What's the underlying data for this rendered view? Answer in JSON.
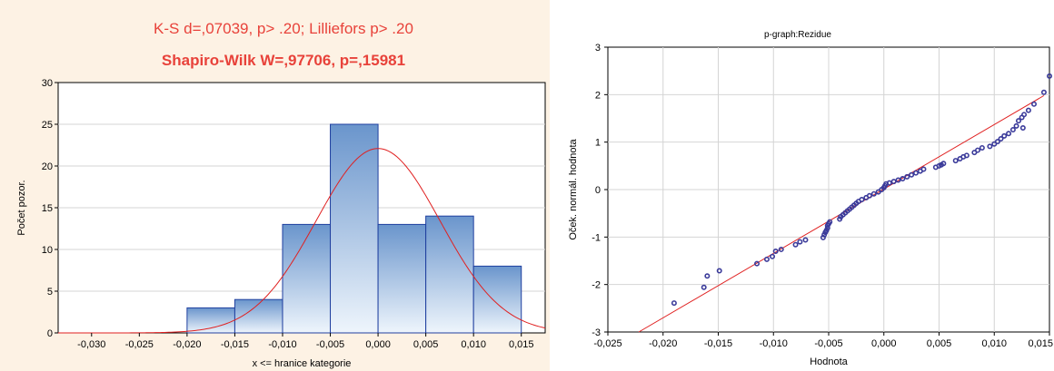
{
  "colors": {
    "left_background": "#fdf2e4",
    "title_color": "#e8423a",
    "bar_top": "#6a95cc",
    "bar_bottom": "#eef5fc",
    "bar_border": "#1f3f9f",
    "curve": "#e02020",
    "points": "#3b3b9a"
  },
  "chart_data": [
    {
      "type": "bar",
      "title": "K-S d=,07039, p> .20; Lilliefors p> .20",
      "subtitle": "Shapiro-Wilk W=,97706, p=,15981",
      "xlabel": "x <= hranice kategorie",
      "ylabel": "Počet pozor.",
      "xlim": [
        -0.0335,
        0.0175
      ],
      "ylim": [
        0,
        30
      ],
      "x_ticks": [
        "-0,030",
        "-0,025",
        "-0,020",
        "-0,015",
        "-0,010",
        "-0,005",
        "0,000",
        "0,005",
        "0,010",
        "0,015"
      ],
      "x_tick_values": [
        -0.03,
        -0.025,
        -0.02,
        -0.015,
        -0.01,
        -0.005,
        0.0,
        0.005,
        0.01,
        0.015
      ],
      "y_ticks": [
        "0",
        "5",
        "10",
        "15",
        "20",
        "25",
        "30"
      ],
      "y_tick_values": [
        0,
        5,
        10,
        15,
        20,
        25,
        30
      ],
      "bins": [
        {
          "from": -0.02,
          "to": -0.015,
          "count": 3
        },
        {
          "from": -0.015,
          "to": -0.01,
          "count": 4
        },
        {
          "from": -0.01,
          "to": -0.005,
          "count": 13
        },
        {
          "from": -0.005,
          "to": 0.0,
          "count": 25
        },
        {
          "from": 0.0,
          "to": 0.005,
          "count": 13
        },
        {
          "from": 0.005,
          "to": 0.01,
          "count": 14
        },
        {
          "from": 0.01,
          "to": 0.015,
          "count": 8
        }
      ],
      "normal_curve": {
        "mean": 0.0,
        "sd": 0.0065,
        "peak": 22.1
      },
      "grid": true
    },
    {
      "type": "scatter",
      "title": "p-graph:Rezidue",
      "xlabel": "Hodnota",
      "ylabel": "Oček. normál. hodnota",
      "xlim": [
        -0.025,
        0.015
      ],
      "ylim": [
        -3,
        3
      ],
      "x_ticks": [
        "-0,025",
        "-0,020",
        "-0,015",
        "-0,010",
        "-0,005",
        "0,000",
        "0,005",
        "0,010",
        "0,015"
      ],
      "x_tick_values": [
        -0.025,
        -0.02,
        -0.015,
        -0.01,
        -0.005,
        0.0,
        0.005,
        0.01,
        0.015
      ],
      "y_ticks": [
        "-3",
        "-2",
        "-1",
        "0",
        "1",
        "2",
        "3"
      ],
      "y_tick_values": [
        -3,
        -2,
        -1,
        0,
        1,
        2,
        3
      ],
      "fit_line": {
        "x": [
          -0.0222,
          0.0145
        ],
        "y": [
          -3.0,
          1.98
        ]
      },
      "points": [
        [
          -0.019,
          -2.39
        ],
        [
          -0.0163,
          -2.06
        ],
        [
          -0.016,
          -1.82
        ],
        [
          -0.0149,
          -1.71
        ],
        [
          -0.0115,
          -1.56
        ],
        [
          -0.0106,
          -1.47
        ],
        [
          -0.0101,
          -1.41
        ],
        [
          -0.0098,
          -1.3
        ],
        [
          -0.0093,
          -1.26
        ],
        [
          -0.008,
          -1.16
        ],
        [
          -0.0076,
          -1.1
        ],
        [
          -0.0071,
          -1.06
        ],
        [
          -0.0055,
          -1.01
        ],
        [
          -0.0054,
          -0.95
        ],
        [
          -0.0053,
          -0.9
        ],
        [
          -0.0052,
          -0.86
        ],
        [
          -0.0051,
          -0.81
        ],
        [
          -0.0051,
          -0.76
        ],
        [
          -0.005,
          -0.72
        ],
        [
          -0.0049,
          -0.68
        ],
        [
          -0.004,
          -0.62
        ],
        [
          -0.0039,
          -0.57
        ],
        [
          -0.0037,
          -0.53
        ],
        [
          -0.0035,
          -0.49
        ],
        [
          -0.0033,
          -0.45
        ],
        [
          -0.0031,
          -0.41
        ],
        [
          -0.0029,
          -0.37
        ],
        [
          -0.0027,
          -0.33
        ],
        [
          -0.0025,
          -0.29
        ],
        [
          -0.0023,
          -0.25
        ],
        [
          -0.002,
          -0.21
        ],
        [
          -0.0016,
          -0.17
        ],
        [
          -0.0013,
          -0.13
        ],
        [
          -0.0009,
          -0.09
        ],
        [
          -0.0005,
          -0.05
        ],
        [
          -0.0002,
          0.0
        ],
        [
          0.0,
          0.04
        ],
        [
          0.0001,
          0.08
        ],
        [
          0.0002,
          0.12
        ],
        [
          0.0005,
          0.14
        ],
        [
          0.0009,
          0.17
        ],
        [
          0.0013,
          0.2
        ],
        [
          0.0017,
          0.23
        ],
        [
          0.0021,
          0.27
        ],
        [
          0.0025,
          0.31
        ],
        [
          0.0029,
          0.35
        ],
        [
          0.0033,
          0.39
        ],
        [
          0.0036,
          0.43
        ],
        [
          0.0047,
          0.47
        ],
        [
          0.005,
          0.5
        ],
        [
          0.0052,
          0.52
        ],
        [
          0.0054,
          0.55
        ],
        [
          0.0065,
          0.61
        ],
        [
          0.0069,
          0.65
        ],
        [
          0.0072,
          0.69
        ],
        [
          0.0075,
          0.72
        ],
        [
          0.0082,
          0.78
        ],
        [
          0.0085,
          0.83
        ],
        [
          0.0089,
          0.88
        ],
        [
          0.0096,
          0.91
        ],
        [
          0.01,
          0.96
        ],
        [
          0.0103,
          1.01
        ],
        [
          0.0106,
          1.07
        ],
        [
          0.0109,
          1.13
        ],
        [
          0.0113,
          1.18
        ],
        [
          0.0117,
          1.26
        ],
        [
          0.012,
          1.34
        ],
        [
          0.0122,
          1.45
        ],
        [
          0.0125,
          1.52
        ],
        [
          0.0127,
          1.58
        ],
        [
          0.0131,
          1.67
        ],
        [
          0.0126,
          1.3
        ],
        [
          0.0136,
          1.8
        ],
        [
          0.0145,
          2.05
        ],
        [
          0.015,
          2.39
        ]
      ],
      "grid": true
    }
  ]
}
